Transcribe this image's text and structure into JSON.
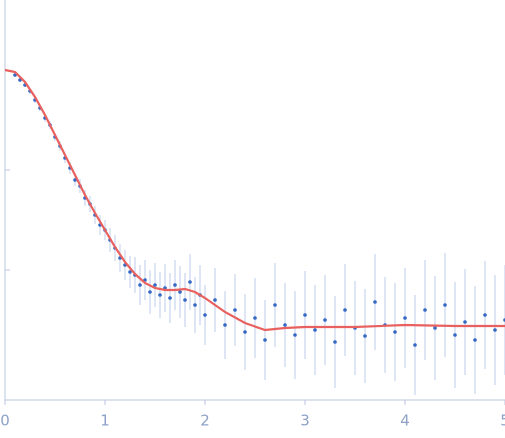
{
  "chart_data": {
    "type": "scatter",
    "x": [
      0.1,
      0.15,
      0.2,
      0.25,
      0.3,
      0.35,
      0.4,
      0.45,
      0.5,
      0.55,
      0.6,
      0.65,
      0.7,
      0.75,
      0.8,
      0.85,
      0.9,
      0.95,
      1.0,
      1.05,
      1.1,
      1.15,
      1.2,
      1.25,
      1.3,
      1.35,
      1.4,
      1.45,
      1.5,
      1.55,
      1.6,
      1.65,
      1.7,
      1.75,
      1.8,
      1.85,
      1.9,
      1.95,
      2.0,
      2.1,
      2.2,
      2.3,
      2.4,
      2.5,
      2.6,
      2.7,
      2.8,
      2.9,
      3.0,
      3.1,
      3.2,
      3.3,
      3.4,
      3.5,
      3.6,
      3.7,
      3.8,
      3.9,
      4.0,
      4.1,
      4.2,
      4.3,
      4.4,
      4.5,
      4.6,
      4.7,
      4.8,
      4.9,
      5.0
    ],
    "values": [
      1.95,
      1.9,
      1.85,
      1.79,
      1.7,
      1.62,
      1.52,
      1.45,
      1.33,
      1.24,
      1.12,
      1.02,
      0.9,
      0.84,
      0.72,
      0.66,
      0.55,
      0.45,
      0.4,
      0.3,
      0.22,
      0.12,
      0.05,
      -0.02,
      -0.05,
      -0.15,
      -0.1,
      -0.22,
      -0.15,
      -0.25,
      -0.18,
      -0.28,
      -0.15,
      -0.22,
      -0.3,
      -0.12,
      -0.35,
      -0.25,
      -0.45,
      -0.3,
      -0.55,
      -0.4,
      -0.62,
      -0.48,
      -0.7,
      -0.35,
      -0.55,
      -0.65,
      -0.45,
      -0.6,
      -0.5,
      -0.72,
      -0.4,
      -0.58,
      -0.66,
      -0.32,
      -0.55,
      -0.62,
      -0.48,
      -0.75,
      -0.4,
      -0.58,
      -0.35,
      -0.65,
      -0.52,
      -0.7,
      -0.45,
      -0.6,
      -0.5
    ],
    "errors": [
      0.02,
      0.02,
      0.02,
      0.03,
      0.03,
      0.03,
      0.04,
      0.04,
      0.04,
      0.05,
      0.05,
      0.06,
      0.06,
      0.07,
      0.08,
      0.08,
      0.09,
      0.1,
      0.1,
      0.12,
      0.13,
      0.14,
      0.15,
      0.16,
      0.18,
      0.2,
      0.2,
      0.22,
      0.22,
      0.23,
      0.24,
      0.25,
      0.25,
      0.26,
      0.27,
      0.28,
      0.28,
      0.3,
      0.3,
      0.32,
      0.34,
      0.36,
      0.38,
      0.4,
      0.4,
      0.42,
      0.42,
      0.44,
      0.44,
      0.45,
      0.45,
      0.46,
      0.46,
      0.47,
      0.47,
      0.48,
      0.48,
      0.49,
      0.5,
      0.5,
      0.5,
      0.52,
      0.52,
      0.53,
      0.53,
      0.54,
      0.54,
      0.55,
      0.55
    ],
    "color": "#3568c4",
    "error_color": "#c9d5ee",
    "fit": {
      "x": [
        0,
        0.1,
        0.2,
        0.3,
        0.4,
        0.5,
        0.6,
        0.7,
        0.8,
        0.9,
        1.0,
        1.1,
        1.2,
        1.3,
        1.4,
        1.5,
        1.6,
        1.7,
        1.8,
        1.9,
        2.0,
        2.2,
        2.4,
        2.6,
        2.8,
        3.0,
        3.5,
        4.0,
        4.5,
        5.0
      ],
      "values": [
        2.0,
        1.98,
        1.88,
        1.73,
        1.55,
        1.35,
        1.15,
        0.95,
        0.75,
        0.57,
        0.4,
        0.23,
        0.08,
        -0.04,
        -0.13,
        -0.18,
        -0.2,
        -0.2,
        -0.19,
        -0.22,
        -0.28,
        -0.42,
        -0.53,
        -0.6,
        -0.58,
        -0.57,
        -0.57,
        -0.55,
        -0.56,
        -0.56
      ],
      "color": "#e8615f"
    },
    "xlim": [
      0,
      5
    ],
    "xticks": [
      0,
      1,
      2,
      3,
      4,
      5
    ],
    "ylim": [
      -1.3,
      2.7
    ],
    "yticks": [
      0,
      1
    ]
  }
}
